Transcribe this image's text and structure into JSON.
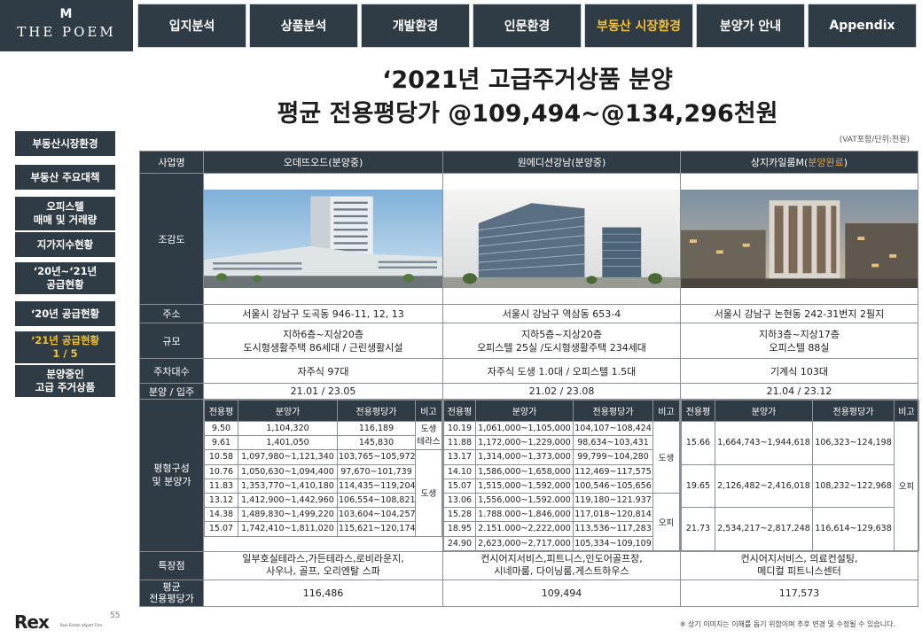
{
  "brand": {
    "mark": "M",
    "name": "THE POEM"
  },
  "nav": [
    "입지분석",
    "상품분석",
    "개발환경",
    "인문환경",
    "부동산 시장환경",
    "분양가 안내",
    "Appendix"
  ],
  "sidebar": [
    "부동산시장환경",
    "부동산 주요대책",
    "오피스텔\n매매 및 거래량",
    "지가지수현황",
    "‘20년~‘21년\n공급현황",
    "‘20년 공급현황",
    "‘21년 공급현황\n1 / 5",
    "분양중인\n고급 주거상품"
  ],
  "title": {
    "line1": "‘2021년 고급주거상품 분양",
    "line2": "평균 전용평당가 @109,494~@134,296천원"
  },
  "unit_note": "(VAT포함/단위:천원)",
  "row_labels": {
    "name": "사업명",
    "photo": "조감도",
    "address": "주소",
    "scale": "규모",
    "parking": "주차대수",
    "schedule": "분양 / 입주",
    "plan": "평형구성\n및 분양가",
    "features": "특장점",
    "avg": "평균\n전용평당가"
  },
  "inner_headers": [
    "전용평",
    "분양가",
    "전용평당가",
    "비고"
  ],
  "projects": [
    {
      "name": "오데뜨오드(분양중)",
      "name_suffix": "",
      "address": "서울시 강남구 도곡동 946-11, 12, 13",
      "scale": "지하6층~지상20층\n도시형생활주택 86세대 / 근린생활시설",
      "parking": "자주식 97대",
      "schedule": "21.01 / 23.05",
      "units": [
        [
          "9.50",
          "1,104,320",
          "116,189"
        ],
        [
          "9.61",
          "1,401,050",
          "145,830"
        ],
        [
          "10.58",
          "1,097,980~1,121,340",
          "103,765~105,972"
        ],
        [
          "10.76",
          "1,050,630~1,094,400",
          "97,670~101,739"
        ],
        [
          "11.83",
          "1,353,770~1,410,180",
          "114,435~119,204"
        ],
        [
          "13.12",
          "1,412,900~1,442,960",
          "106,554~108,821"
        ],
        [
          "14.38",
          "1,489,830~1,499,220",
          "103,604~104,257"
        ],
        [
          "15.07",
          "1,742,410~1,811,020",
          "115,621~120,174"
        ]
      ],
      "notes": [
        "도생\n테라스",
        "도생"
      ],
      "features": "일부호실테라스,가든테라스,로비라운지,\n사우나, 골프, 오리엔탈 스파",
      "avg": "116,486"
    },
    {
      "name": "원에디션강남(분양중)",
      "name_suffix": "",
      "address": "서울시 강남구 역삼동 653-4",
      "scale": "지하5층~지상20층\n오피스텔 25실 /도시형생활주택 234세대",
      "parking": "자주식 도생 1.0대 / 오피스텔 1.5대",
      "schedule": "21.02 / 23.08",
      "units": [
        [
          "10.19",
          "1,061,000~1,105,000",
          "104,107~108,424"
        ],
        [
          "11.88",
          "1,172,000~1,229,000",
          "98,634~103,431"
        ],
        [
          "13.17",
          "1,314,000~1,373,000",
          "99,799~104,280"
        ],
        [
          "14.10",
          "1,586,000~1,658,000",
          "112,469~117,575"
        ],
        [
          "15.07",
          "1,515,000~1,592,000",
          "100,546~105,656"
        ],
        [
          "13.06",
          "1,556,000~1,592.000",
          "119,180~121.937"
        ],
        [
          "15.28",
          "1.788.000~1,846,000",
          "117,018~120,814"
        ],
        [
          "18.95",
          "2.151.000~2,222,000",
          "113,536~117,283"
        ],
        [
          "24.90",
          "2,623,000~2,717,000",
          "105,334~109,109"
        ]
      ],
      "notes": [
        "도생",
        "오피"
      ],
      "features": "컨시어지서비스,피트니스,인도어골프장,\n시네마룸, 다이닝룸,게스트하우스",
      "avg": "109,494"
    },
    {
      "name": "상지카일룸M(",
      "name_suffix": "분양완료",
      "name_end": ")",
      "address": "서울시 강남구 논현동 242-31번지 2필지",
      "scale": "지하3층~지상17층\n오피스텔 88실",
      "parking": "기계식 103대",
      "schedule": "21.04  / 23.12",
      "units": [
        [
          "15.66",
          "1,664,743~1,944,618",
          "106,323~124,198"
        ],
        [
          "19.65",
          "2,126,482~2,416,018",
          "108,232~122,968"
        ],
        [
          "21.73",
          "2,534,217~2,817,248",
          "116,614~129,638"
        ]
      ],
      "notes": [
        "오피"
      ],
      "features": "컨시어지서비스, 의료컨설팅,\n메디컬 피트니스센터",
      "avg": "117,573"
    }
  ],
  "footer": {
    "logo": "Rex",
    "sub": "Real Estate eXpert Firm",
    "page": "55"
  },
  "bottom_note": "※ 상기 이미지는 이해를 돕기 위함이며 추후 변경 및 수정될 수 있습니다.",
  "colors": {
    "navy": "#2f3b45",
    "gold": "#f2c230",
    "orange": "#f2a23a"
  }
}
